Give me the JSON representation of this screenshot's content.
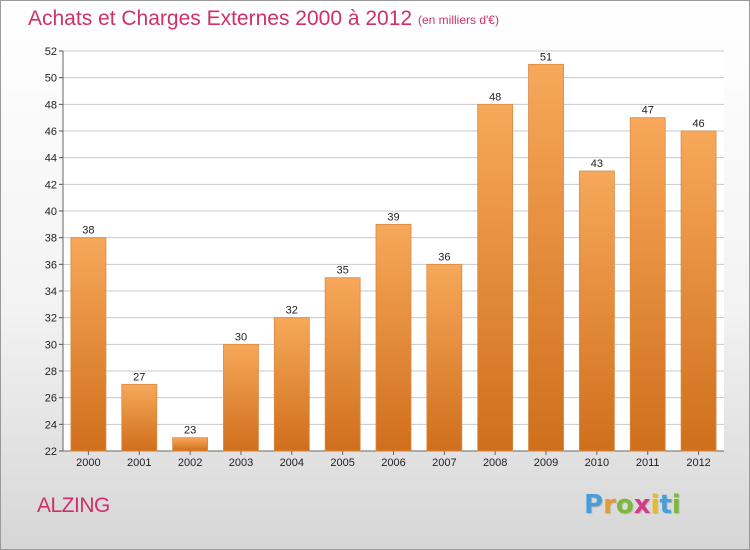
{
  "title": "Achats et Charges Externes 2000 à 2012",
  "unit_note": "(en milliers d'€)",
  "town": "ALZING",
  "logo": {
    "letters": [
      "P",
      "r",
      "o",
      "x",
      "i",
      "t",
      "i"
    ],
    "colors": [
      "#4a9ed8",
      "#e89a2a",
      "#7cb83a",
      "#d23c8a",
      "#e8b92a",
      "#4a9ed8",
      "#7cb83a"
    ]
  },
  "colors": {
    "title": "#d0306a",
    "bar_light": "#f7a85a",
    "bar_dark": "#cf6f1c",
    "grid": "#c8c8c8"
  },
  "chart_data": {
    "type": "bar",
    "title": "Achats et Charges Externes 2000 à 2012",
    "categories": [
      "2000",
      "2001",
      "2002",
      "2003",
      "2004",
      "2005",
      "2006",
      "2007",
      "2008",
      "2009",
      "2010",
      "2011",
      "2012"
    ],
    "values": [
      38,
      27,
      23,
      30,
      32,
      35,
      39,
      36,
      48,
      51,
      43,
      47,
      46
    ],
    "ylim": [
      22,
      52
    ],
    "yticks": [
      22,
      24,
      26,
      28,
      30,
      32,
      34,
      36,
      38,
      40,
      42,
      44,
      46,
      48,
      50,
      52
    ],
    "grid": true,
    "xlabel": "",
    "ylabel": ""
  }
}
